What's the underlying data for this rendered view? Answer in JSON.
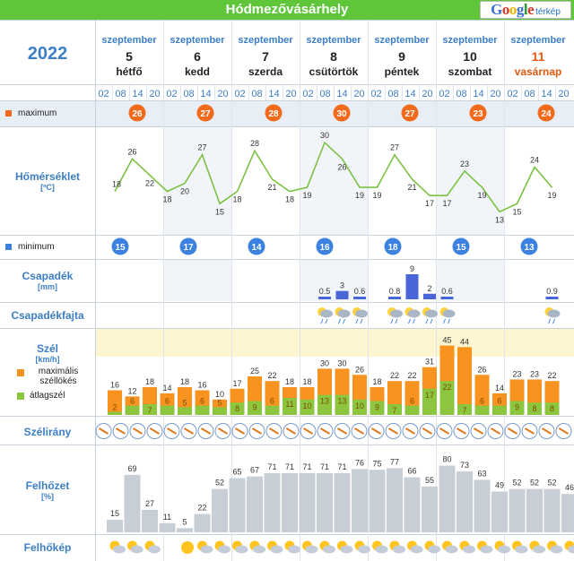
{
  "title": "Hódmezővásárhely",
  "logo": {
    "brand": "Google",
    "suffix": "térkép"
  },
  "year": "2022",
  "days": [
    {
      "month": "szeptember",
      "day": "5",
      "name": "hétfő",
      "sunday": false
    },
    {
      "month": "szeptember",
      "day": "6",
      "name": "kedd",
      "sunday": false
    },
    {
      "month": "szeptember",
      "day": "7",
      "name": "szerda",
      "sunday": false
    },
    {
      "month": "szeptember",
      "day": "8",
      "name": "csütörtök",
      "sunday": false
    },
    {
      "month": "szeptember",
      "day": "9",
      "name": "péntek",
      "sunday": false
    },
    {
      "month": "szeptember",
      "day": "10",
      "name": "szombat",
      "sunday": false
    },
    {
      "month": "szeptember",
      "day": "11",
      "name": "vasárnap",
      "sunday": true
    }
  ],
  "hours": [
    "02",
    "08",
    "14",
    "20"
  ],
  "labels": {
    "maximum": "maximum",
    "temperature": "Hőmérséklet",
    "temperature_unit": "[ºC]",
    "minimum": "minimum",
    "precip": "Csapadék",
    "precip_unit": "[mm]",
    "precip_type": "Csapadékfajta",
    "wind": "Szél",
    "wind_unit": "[km/h]",
    "wind_gust": "maximális széllökés",
    "wind_avg": "átlagszél",
    "wind_dir": "Szélirány",
    "cloud": "Felhőzet",
    "cloud_unit": "[%]",
    "cloud_pic": "Felhőkép"
  },
  "colors": {
    "header_green": "#5fc63a",
    "label_blue": "#3d7fc6",
    "max_orange": "#f26a1b",
    "min_blue": "#3b82e0",
    "temp_line": "#7cc242",
    "precip_bar": "#4a66d6",
    "gust_bar": "#f7931e",
    "avg_bar": "#8cc63f",
    "cloud_bar": "#c8ced6"
  },
  "daily_max": [
    26,
    27,
    28,
    30,
    27,
    23,
    24
  ],
  "daily_min": [
    15,
    17,
    14,
    16,
    18,
    15,
    13
  ],
  "temperature": [
    18,
    26,
    22,
    18,
    20,
    27,
    15,
    18,
    28,
    21,
    18,
    19,
    30,
    26,
    19,
    19,
    27,
    21,
    17,
    17,
    23,
    19,
    13,
    15,
    24,
    19
  ],
  "precipitation": [
    null,
    null,
    null,
    null,
    null,
    null,
    null,
    null,
    null,
    null,
    null,
    null,
    0.5,
    3,
    0.6,
    null,
    0.8,
    9,
    2,
    0.6,
    null,
    null,
    null,
    null,
    null,
    0.9
  ],
  "precip_type_icons": [
    null,
    null,
    null,
    null,
    null,
    null,
    null,
    null,
    null,
    null,
    null,
    null,
    "rain-sun-icon",
    "rain-cloud-icon",
    "rain-icon",
    null,
    "rain-sun-icon",
    "storm-icon",
    "rain-sun-icon",
    "rain-icon",
    null,
    null,
    null,
    null,
    null,
    "rain-sun-icon"
  ],
  "wind_gust": [
    16,
    12,
    18,
    14,
    18,
    16,
    10,
    17,
    25,
    22,
    18,
    18,
    30,
    30,
    26,
    18,
    22,
    22,
    31,
    45,
    44,
    26,
    14,
    23,
    23,
    22
  ],
  "wind_avg": [
    2,
    6,
    7,
    6,
    5,
    6,
    5,
    8,
    9,
    6,
    11,
    10,
    13,
    13,
    10,
    9,
    7,
    6,
    17,
    22,
    7,
    6,
    6,
    9,
    8,
    8
  ],
  "wind_dir_icon": "wind-arrow-icon",
  "cloud_cover": [
    15,
    69,
    27,
    11,
    5,
    22,
    52,
    65,
    67,
    71,
    71,
    71,
    71,
    71,
    76,
    75,
    77,
    66,
    55,
    80,
    73,
    63,
    49,
    52,
    52,
    52,
    46
  ],
  "cloud_icons": [
    "partly-cloudy-icon",
    "cloudy-sun-icon",
    "night-cloud-icon",
    "moon-icon",
    "sun-icon",
    "partly-cloudy-icon",
    "cloudy-sun-icon",
    "cloudy-sun-icon",
    "cloudy-sun-icon",
    "cloudy-icon",
    "cloudy-icon",
    "cloudy-icon",
    "cloudy-icon",
    "cloudy-icon",
    "cloudy-icon",
    "cloudy-icon",
    "cloudy-icon",
    "cloudy-icon",
    "cloudy-icon",
    "cloudy-icon",
    "cloudy-icon",
    "cloudy-icon",
    "cloudy-icon",
    "cloudy-icon",
    "cloudy-icon",
    "cloudy-icon",
    "cloudy-icon"
  ]
}
